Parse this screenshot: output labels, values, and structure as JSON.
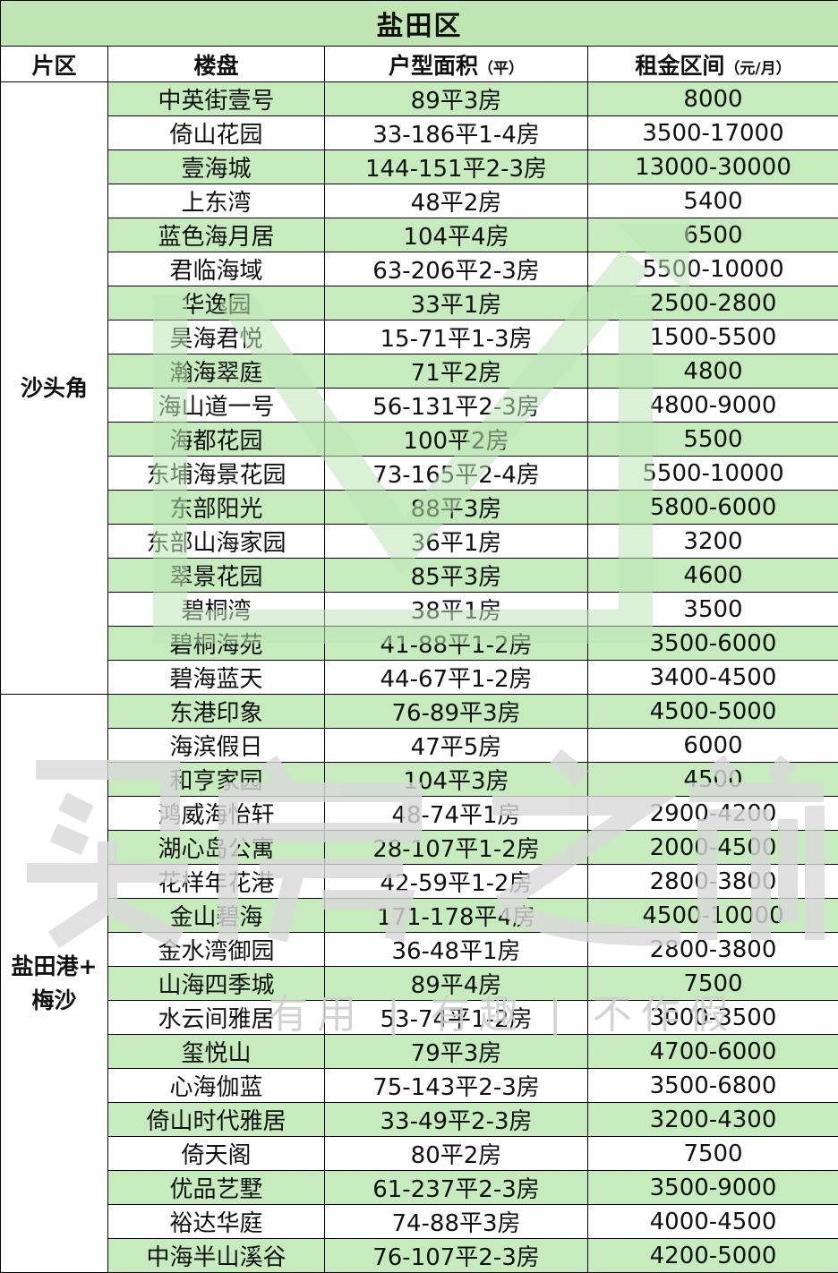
{
  "title": "盐田区",
  "headers": {
    "area": "片区",
    "estate": "楼盘",
    "layout": "户型面积",
    "layout_unit": "（平）",
    "rent": "租金区间",
    "rent_unit": "（元/月）"
  },
  "watermark": {
    "brand": "买房之前",
    "slogan": "有用 | 有趣 | 不作假",
    "color": "#d9d9d9",
    "logo_color": "#bde5b7"
  },
  "colors": {
    "title_bg": "#bfe6b2",
    "row_shade": "#c6ecbd"
  },
  "groups": [
    {
      "area": "沙头角",
      "rows": [
        {
          "estate": "中英街壹号",
          "layout": "89平3房",
          "rent": "8000"
        },
        {
          "estate": "倚山花园",
          "layout": "33-186平1-4房",
          "rent": "3500-17000"
        },
        {
          "estate": "壹海城",
          "layout": "144-151平2-3房",
          "rent": "13000-30000"
        },
        {
          "estate": "上东湾",
          "layout": "48平2房",
          "rent": "5400"
        },
        {
          "estate": "蓝色海月居",
          "layout": "104平4房",
          "rent": "6500"
        },
        {
          "estate": "君临海域",
          "layout": "63-206平2-3房",
          "rent": "5500-10000"
        },
        {
          "estate": "华逸园",
          "layout": "33平1房",
          "rent": "2500-2800"
        },
        {
          "estate": "昊海君悦",
          "layout": "15-71平1-3房",
          "rent": "1500-5500"
        },
        {
          "estate": "瀚海翠庭",
          "layout": "71平2房",
          "rent": "4800"
        },
        {
          "estate": "海山道一号",
          "layout": "56-131平2-3房",
          "rent": "4800-9000"
        },
        {
          "estate": "海都花园",
          "layout": "100平2房",
          "rent": "5500"
        },
        {
          "estate": "东埔海景花园",
          "layout": "73-165平2-4房",
          "rent": "5500-10000"
        },
        {
          "estate": "东部阳光",
          "layout": "88平3房",
          "rent": "5800-6000"
        },
        {
          "estate": "东部山海家园",
          "layout": "36平1房",
          "rent": "3200"
        },
        {
          "estate": "翠景花园",
          "layout": "85平3房",
          "rent": "4600"
        },
        {
          "estate": "碧桐湾",
          "layout": "38平1房",
          "rent": "3500"
        },
        {
          "estate": "碧桐海苑",
          "layout": "41-88平1-2房",
          "rent": "3500-6000"
        },
        {
          "estate": "碧海蓝天",
          "layout": "44-67平1-2房",
          "rent": "3400-4500"
        }
      ]
    },
    {
      "area": "盐田港+梅沙",
      "rows": [
        {
          "estate": "东港印象",
          "layout": "76-89平3房",
          "rent": "4500-5000"
        },
        {
          "estate": "海滨假日",
          "layout": "47平5房",
          "rent": "6000"
        },
        {
          "estate": "和亨家园",
          "layout": "104平3房",
          "rent": "4500"
        },
        {
          "estate": "鸿威海怡轩",
          "layout": "48-74平1房",
          "rent": "2900-4200"
        },
        {
          "estate": "湖心岛公寓",
          "layout": "28-107平1-2房",
          "rent": "2000-4500"
        },
        {
          "estate": "花样年花港",
          "layout": "42-59平1-2房",
          "rent": "2800-3800"
        },
        {
          "estate": "金山碧海",
          "layout": "171-178平4房",
          "rent": "4500-10000"
        },
        {
          "estate": "金水湾御园",
          "layout": "36-48平1房",
          "rent": "2800-3800"
        },
        {
          "estate": "山海四季城",
          "layout": "89平4房",
          "rent": "7500"
        },
        {
          "estate": "水云间雅居",
          "layout": "53-74平1-2房",
          "rent": "3000-3500"
        },
        {
          "estate": "玺悦山",
          "layout": "79平3房",
          "rent": "4700-6000"
        },
        {
          "estate": "心海伽蓝",
          "layout": "75-143平2-3房",
          "rent": "3500-6800"
        },
        {
          "estate": "倚山时代雅居",
          "layout": "33-49平2-3房",
          "rent": "3200-4300"
        },
        {
          "estate": "倚天阁",
          "layout": "80平2房",
          "rent": "7500"
        },
        {
          "estate": "优品艺墅",
          "layout": "61-237平2-3房",
          "rent": "3500-9000"
        },
        {
          "estate": "裕达华庭",
          "layout": "74-88平3房",
          "rent": "4000-4500"
        },
        {
          "estate": "中海半山溪谷",
          "layout": "76-107平2-3房",
          "rent": "4200-5000"
        }
      ]
    }
  ]
}
